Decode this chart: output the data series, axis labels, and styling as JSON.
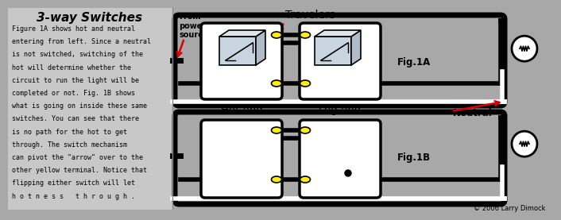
{
  "bg_color": "#a8a8a8",
  "left_bg": "#c8c8c8",
  "title": "3-way Switches",
  "body_lines": [
    "Figure 1A shows hot and neutral",
    "entering from left. Since a neutral",
    "is not switched, switching of the",
    "hot will determine whether the",
    "circuit to run the light will be",
    "completed or not. Fig. 1B shows",
    "what is going on inside these same",
    "switches. You can see that there",
    "is no path for the hot to get",
    "through. The switch mechanism",
    "can pivot the \"arrow\" over to the",
    "other yellow terminal. Notice that",
    "flipping either switch will let",
    "h o t n e s s   t h r o u g h ."
  ],
  "copyright": "© 2006 Larry Dimock",
  "label_travelers": "Travelers",
  "label_from": "From\npower\nsource",
  "label_hot": "Hot end",
  "label_leg": "Leg end",
  "label_neutral": "Neutral",
  "label_fig1a": "Fig.1A",
  "label_fig1b": "Fig.1B",
  "yellow": "#ffee00",
  "black": "#000000",
  "white": "#ffffff",
  "red": "#dd0000",
  "wire_lw": 4,
  "border_lw": 5,
  "switch_lw": 3
}
